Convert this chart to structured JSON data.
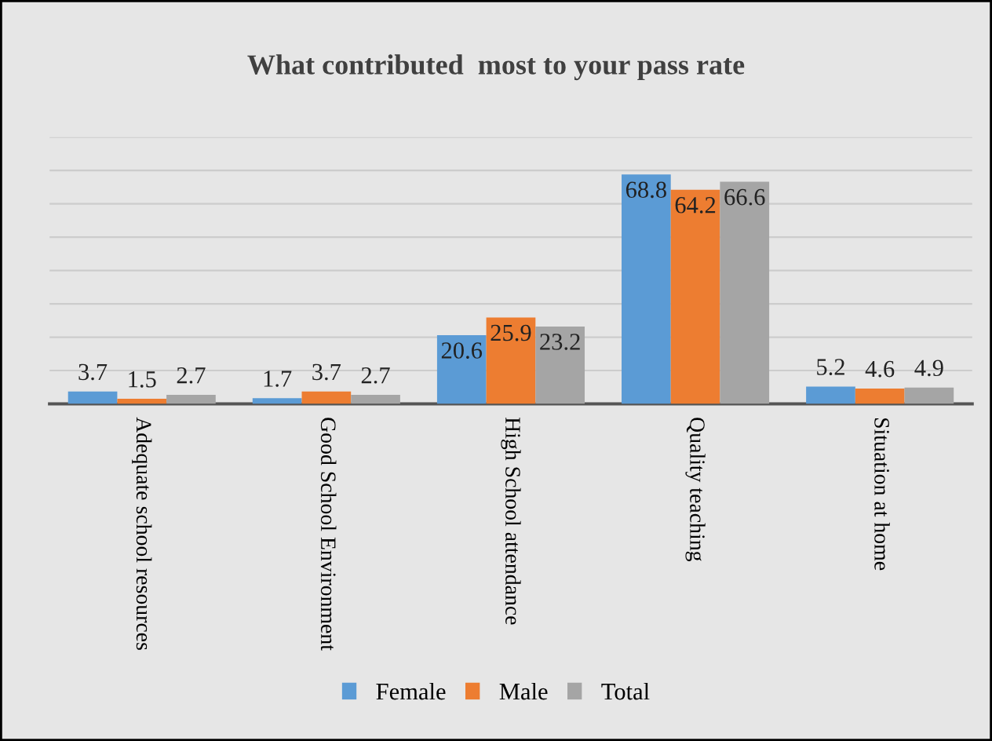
{
  "chart_data": {
    "type": "bar",
    "title": "What contributed  most to your pass rate",
    "categories": [
      "Adequate school resources",
      "Good School Environment",
      "High School attendance",
      "Quality teaching",
      "Situation at home"
    ],
    "series": [
      {
        "name": "Female",
        "color": "#5b9bd5",
        "values": [
          3.7,
          1.7,
          20.6,
          68.8,
          5.2
        ]
      },
      {
        "name": "Male",
        "color": "#ed7d31",
        "values": [
          1.5,
          3.7,
          25.9,
          64.2,
          4.6
        ]
      },
      {
        "name": "Total",
        "color": "#a5a5a5",
        "values": [
          2.7,
          2.7,
          23.2,
          66.6,
          4.9
        ]
      }
    ],
    "ylim": [
      0,
      80
    ],
    "yticks": [
      {
        "value": 0,
        "label": null
      },
      {
        "value": 10,
        "label": null
      },
      {
        "value": 20,
        "label": null
      },
      {
        "value": 30,
        "label": null
      },
      {
        "value": 40,
        "label": null
      },
      {
        "value": 50,
        "label": null
      },
      {
        "value": 60,
        "label": null
      },
      {
        "value": 70,
        "label": null
      },
      {
        "value": 80,
        "label": null
      }
    ],
    "grid": "y",
    "legend": "bottom",
    "data_labels": true,
    "tick_labels": "x"
  }
}
